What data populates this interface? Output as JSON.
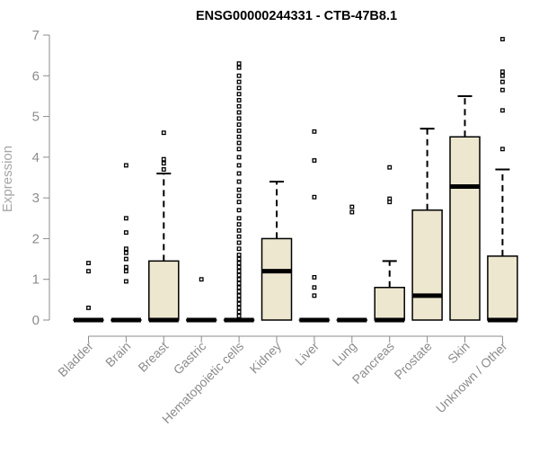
{
  "chart_data": {
    "type": "boxplot",
    "title": "ENSG00000244331 - CTB-47B8.1",
    "xlabel": "",
    "ylabel": "Expression",
    "ylim": [
      0,
      7
    ],
    "yticks": [
      0,
      1,
      2,
      3,
      4,
      5,
      6,
      7
    ],
    "grid": false,
    "legend": "none",
    "colors": {
      "box_fill": "#ede7cf",
      "box_stroke": "#000000",
      "axis": "#8c8c8c",
      "tick_label": "#8c8c8c",
      "ylabel": "#a6a6a6"
    },
    "categories": [
      "Bladder",
      "Brain",
      "Breast",
      "Gastric",
      "Hematopoietic cells",
      "Kidney",
      "Liver",
      "Lung",
      "Pancreas",
      "Prostate",
      "Skin",
      "Unknown / Other"
    ],
    "boxes": [
      {
        "category": "Bladder",
        "min": 0,
        "q1": 0,
        "median": 0,
        "q3": 0,
        "max": 0,
        "outliers": [
          0.3,
          1.2,
          1.4
        ]
      },
      {
        "category": "Brain",
        "min": 0,
        "q1": 0,
        "median": 0,
        "q3": 0,
        "max": 0,
        "outliers": [
          0.95,
          1.2,
          1.3,
          1.5,
          1.65,
          1.75,
          2.15,
          2.5,
          3.8
        ]
      },
      {
        "category": "Breast",
        "min": 0,
        "q1": 0,
        "median": 0,
        "q3": 1.45,
        "max": 3.6,
        "outliers": [
          3.7,
          3.85,
          3.95,
          4.6
        ]
      },
      {
        "category": "Gastric",
        "min": 0,
        "q1": 0,
        "median": 0,
        "q3": 0,
        "max": 0,
        "outliers": [
          1.0
        ]
      },
      {
        "category": "Hematopoietic cells",
        "min": 0,
        "q1": 0,
        "median": 0,
        "q3": 0,
        "max": 0,
        "outliers": [
          0.1,
          0.2,
          0.3,
          0.4,
          0.5,
          0.6,
          0.7,
          0.8,
          0.9,
          1.0,
          1.1,
          1.2,
          1.3,
          1.4,
          1.5,
          1.6,
          1.75,
          1.9,
          2.05,
          2.2,
          2.35,
          2.5,
          2.7,
          2.9,
          3.05,
          3.2,
          3.4,
          3.6,
          3.8,
          4.0,
          4.2,
          4.35,
          4.5,
          4.65,
          4.8,
          4.95,
          5.1,
          5.25,
          5.4,
          5.55,
          5.7,
          5.85,
          6.0,
          6.2,
          6.3
        ]
      },
      {
        "category": "Kidney",
        "min": 0,
        "q1": 0,
        "median": 1.2,
        "q3": 2.0,
        "max": 3.4,
        "outliers": []
      },
      {
        "category": "Liver",
        "min": 0,
        "q1": 0,
        "median": 0,
        "q3": 0,
        "max": 0,
        "outliers": [
          0.6,
          0.8,
          1.05,
          3.02,
          3.92,
          4.63
        ]
      },
      {
        "category": "Lung",
        "min": 0,
        "q1": 0,
        "median": 0,
        "q3": 0,
        "max": 0,
        "outliers": [
          2.65,
          2.78
        ]
      },
      {
        "category": "Pancreas",
        "min": 0,
        "q1": 0,
        "median": 0,
        "q3": 0.8,
        "max": 1.45,
        "outliers": [
          2.9,
          2.98,
          3.75
        ]
      },
      {
        "category": "Prostate",
        "min": 0,
        "q1": 0,
        "median": 0.6,
        "q3": 2.7,
        "max": 4.7,
        "outliers": []
      },
      {
        "category": "Skin",
        "min": 0,
        "q1": 0,
        "median": 3.28,
        "q3": 4.5,
        "max": 5.5,
        "outliers": []
      },
      {
        "category": "Unknown / Other",
        "min": 0,
        "q1": 0,
        "median": 0,
        "q3": 1.57,
        "max": 3.7,
        "outliers": [
          4.2,
          5.15,
          5.65,
          5.85,
          6.0,
          6.1,
          6.9
        ]
      }
    ]
  }
}
